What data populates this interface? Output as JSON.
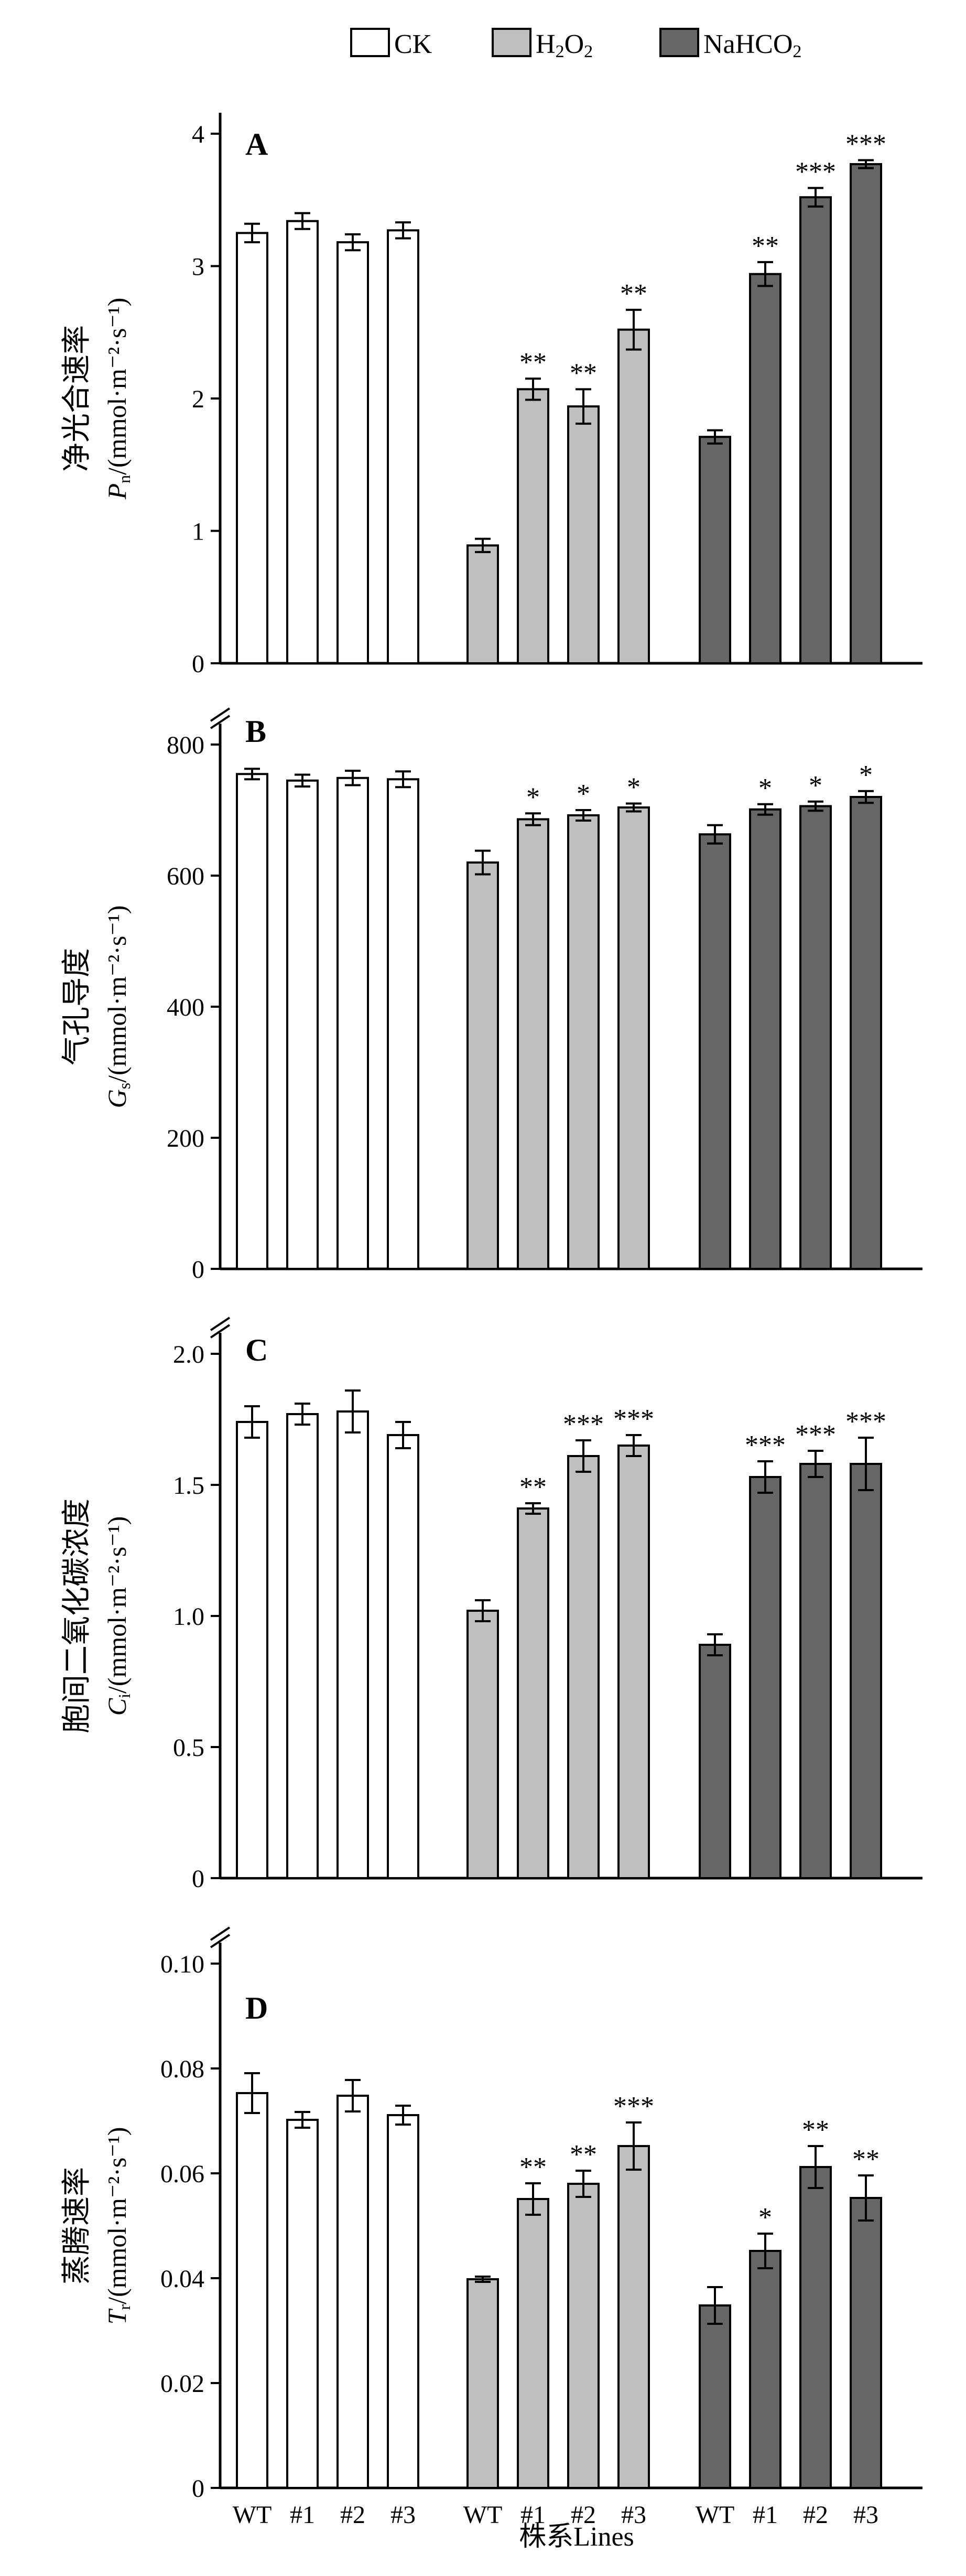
{
  "colors": {
    "CK": "#ffffff",
    "H2O2": "#bfbfbf",
    "NaHCO2": "#666666",
    "stroke": "#000000"
  },
  "legend": [
    {
      "label": "CK"
    },
    {
      "label_main": "H",
      "label_sub1": "2",
      "label_mid": "O",
      "label_sub2": "2"
    },
    {
      "label_main": "NaHCO",
      "label_sub1": "2"
    }
  ],
  "xaxis": {
    "title": "株系Lines",
    "groups": [
      "CK",
      "H2O2",
      "NaHCO2"
    ],
    "categories": [
      "WT",
      "#1",
      "#2",
      "#3",
      "WT",
      "#1",
      "#2",
      "#3",
      "WT",
      "#1",
      "#2",
      "#3"
    ]
  },
  "chart_data": [
    {
      "type": "bar",
      "panel": "A",
      "ylabel_cn": "净光合速率",
      "ylabel_sym": "P",
      "ylabel_sub": "n",
      "ylabel_unit": "/(mmol·m⁻²·s⁻¹)",
      "ylim": [
        0,
        4
      ],
      "yticks": [
        0,
        1,
        2,
        3,
        4
      ],
      "tick_labels": [
        "0",
        "1",
        "2",
        "3",
        "4"
      ],
      "series": [
        {
          "name": "CK",
          "values": [
            3.25,
            3.34,
            3.18,
            3.27
          ],
          "errors": [
            0.07,
            0.06,
            0.06,
            0.06
          ],
          "sig": [
            "",
            "",
            "",
            ""
          ]
        },
        {
          "name": "H2O2",
          "values": [
            0.89,
            2.07,
            1.94,
            2.52
          ],
          "errors": [
            0.05,
            0.08,
            0.13,
            0.15
          ],
          "sig": [
            "",
            "**",
            "**",
            "**"
          ]
        },
        {
          "name": "NaHCO2",
          "values": [
            1.71,
            2.94,
            3.52,
            3.77
          ],
          "errors": [
            0.05,
            0.09,
            0.07,
            0.03
          ],
          "sig": [
            "",
            "**",
            "***",
            "***"
          ]
        }
      ]
    },
    {
      "type": "bar",
      "panel": "B",
      "ylabel_cn": "气孔导度",
      "ylabel_sym": "G",
      "ylabel_sub": "s",
      "ylabel_unit": "/(mmol·m⁻²·s⁻¹)",
      "ylim": [
        0,
        800
      ],
      "yticks": [
        0,
        200,
        400,
        600,
        800
      ],
      "tick_labels": [
        "0",
        "200",
        "400",
        "600",
        "800"
      ],
      "series": [
        {
          "name": "CK",
          "values": [
            755,
            745,
            749,
            747
          ],
          "errors": [
            8,
            9,
            11,
            12
          ],
          "sig": [
            "",
            "",
            "",
            ""
          ]
        },
        {
          "name": "H2O2",
          "values": [
            620,
            686,
            692,
            704
          ],
          "errors": [
            18,
            9,
            8,
            6
          ],
          "sig": [
            "",
            "*",
            "*",
            "*"
          ]
        },
        {
          "name": "NaHCO2",
          "values": [
            663,
            701,
            706,
            720
          ],
          "errors": [
            14,
            8,
            7,
            9
          ],
          "sig": [
            "",
            "*",
            "*",
            "*"
          ]
        }
      ]
    },
    {
      "type": "bar",
      "panel": "C",
      "ylabel_cn": "胞间二氧化碳浓度",
      "ylabel_sym": "C",
      "ylabel_sub": "i",
      "ylabel_unit": "/(mmol·m⁻²·s⁻¹)",
      "ylim": [
        0,
        2.0
      ],
      "yticks": [
        0,
        0.5,
        1.0,
        1.5,
        2.0
      ],
      "tick_labels": [
        "0",
        "0.5",
        "1.0",
        "1.5",
        "2.0"
      ],
      "series": [
        {
          "name": "CK",
          "values": [
            1.74,
            1.77,
            1.78,
            1.69
          ],
          "errors": [
            0.06,
            0.04,
            0.08,
            0.05
          ],
          "sig": [
            "",
            "",
            "",
            ""
          ]
        },
        {
          "name": "H2O2",
          "values": [
            1.02,
            1.41,
            1.61,
            1.65
          ],
          "errors": [
            0.04,
            0.02,
            0.06,
            0.04
          ],
          "sig": [
            "",
            "**",
            "***",
            "***"
          ]
        },
        {
          "name": "NaHCO2",
          "values": [
            0.89,
            1.53,
            1.58,
            1.58
          ],
          "errors": [
            0.04,
            0.06,
            0.05,
            0.1
          ],
          "sig": [
            "",
            "***",
            "***",
            "***"
          ]
        }
      ]
    },
    {
      "type": "bar",
      "panel": "D",
      "ylabel_cn": "蒸腾速率",
      "ylabel_sym": "T",
      "ylabel_sub": "r",
      "ylabel_unit": "/(mmol·m⁻²·s⁻¹)",
      "ylim": [
        0,
        0.1
      ],
      "yticks": [
        0,
        0.02,
        0.04,
        0.06,
        0.08,
        0.1
      ],
      "tick_labels": [
        "0",
        "0.02",
        "0.04",
        "0.06",
        "0.08",
        "0.10"
      ],
      "series": [
        {
          "name": "CK",
          "values": [
            0.0753,
            0.0702,
            0.0748,
            0.0711
          ],
          "errors": [
            0.0038,
            0.0015,
            0.003,
            0.0018
          ],
          "sig": [
            "",
            "",
            "",
            ""
          ]
        },
        {
          "name": "H2O2",
          "values": [
            0.0398,
            0.0551,
            0.058,
            0.0652
          ],
          "errors": [
            0.0005,
            0.003,
            0.0025,
            0.0045
          ],
          "sig": [
            "",
            "**",
            "**",
            "***"
          ]
        },
        {
          "name": "NaHCO2",
          "values": [
            0.0348,
            0.0452,
            0.0612,
            0.0553
          ],
          "errors": [
            0.0035,
            0.0033,
            0.004,
            0.0043
          ],
          "sig": [
            "",
            "*",
            "**",
            "**"
          ]
        }
      ]
    }
  ]
}
